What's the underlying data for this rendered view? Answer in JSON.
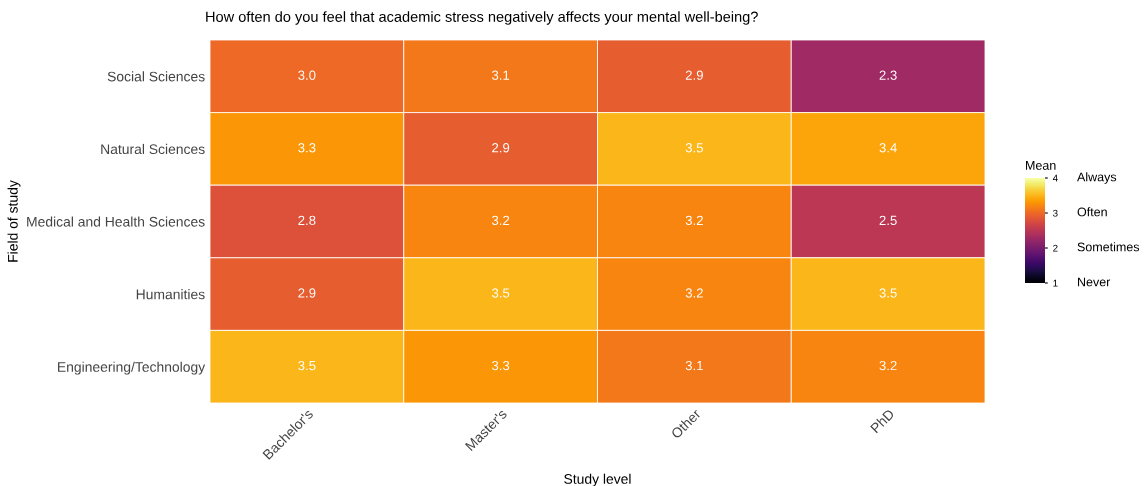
{
  "chart_data": {
    "type": "heatmap",
    "title": "How often do you feel that academic stress negatively affects your mental well-being?",
    "xlabel": "Study level",
    "ylabel": "Field of study",
    "clabel": "Mean",
    "categories": [
      "Bachelor's",
      "Master's",
      "Other",
      "PhD"
    ],
    "y_categories": [
      "Social Sciences",
      "Natural Sciences",
      "Medical and Health Sciences",
      "Humanities",
      "Engineering/Technology"
    ],
    "cells": [
      [
        3.0,
        3.1,
        2.9,
        2.3
      ],
      [
        3.3,
        2.9,
        3.5,
        3.4
      ],
      [
        2.8,
        3.2,
        3.2,
        2.5
      ],
      [
        2.9,
        3.5,
        3.2,
        3.5
      ],
      [
        3.5,
        3.3,
        3.1,
        3.2
      ]
    ],
    "cell_labels": [
      [
        "3.0",
        "3.1",
        "2.9",
        "2.3"
      ],
      [
        "3.3",
        "2.9",
        "3.5",
        "3.4"
      ],
      [
        "2.8",
        "3.2",
        "3.2",
        "2.5"
      ],
      [
        "2.9",
        "3.5",
        "3.2",
        "3.5"
      ],
      [
        "3.5",
        "3.3",
        "3.1",
        "3.2"
      ]
    ],
    "clim": [
      1,
      4
    ],
    "cticks": [
      1,
      2,
      3,
      4
    ],
    "data_labels": true,
    "annotations": [
      "Never",
      "Sometimes",
      "Often",
      "Always"
    ]
  }
}
